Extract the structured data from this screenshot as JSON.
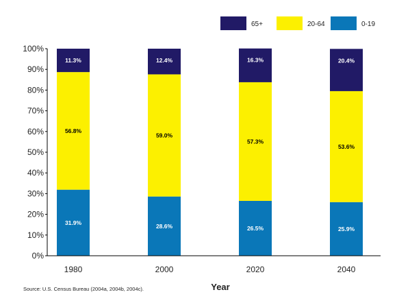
{
  "chart_data": {
    "type": "bar",
    "stacked": true,
    "categories": [
      "1980",
      "2000",
      "2020",
      "2040"
    ],
    "series": [
      {
        "name": "0-19",
        "color": "#0a77b8",
        "label_color": "#ffffff",
        "values": [
          31.9,
          28.6,
          26.5,
          25.9
        ],
        "labels": [
          "31.9%",
          "28.6%",
          "26.5%",
          "25.9%"
        ]
      },
      {
        "name": "20-64",
        "color": "#fcf000",
        "label_color": "#000000",
        "values": [
          56.8,
          59.0,
          57.3,
          53.6
        ],
        "labels": [
          "56.8%",
          "59.0%",
          "57.3%",
          "53.6%"
        ]
      },
      {
        "name": "65+",
        "color": "#211a66",
        "label_color": "#ffffff",
        "values": [
          11.3,
          12.4,
          16.3,
          20.4
        ],
        "labels": [
          "11.3%",
          "12.4%",
          "16.3%",
          "20.4%"
        ]
      }
    ],
    "legend_order": [
      "65+",
      "20-64",
      "0-19"
    ],
    "legend_position": "top-right",
    "title": "",
    "xlabel": "Year",
    "ylabel": "",
    "ylim": [
      0,
      100
    ],
    "yticks": [
      "0%",
      "10%",
      "20%",
      "30%",
      "40%",
      "50%",
      "60%",
      "70%",
      "80%",
      "90%",
      "100%"
    ],
    "grid": false
  },
  "source": "Source: U.S. Census Bureau (2004a, 2004b, 2004c)."
}
